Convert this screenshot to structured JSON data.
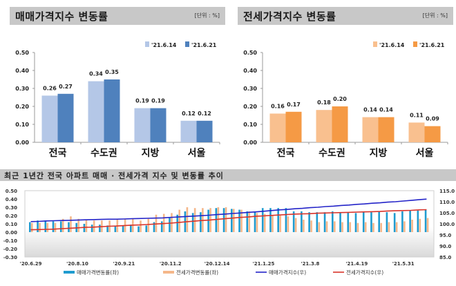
{
  "chart_data": [
    {
      "type": "bar",
      "title": "매매가격지수 변동률",
      "unit": "[단위 : %]",
      "categories": [
        "전국",
        "수도권",
        "지방",
        "서울"
      ],
      "series": [
        {
          "name": "'21.6.14",
          "values": [
            0.26,
            0.34,
            0.19,
            0.12
          ],
          "color": "#b4c7e7"
        },
        {
          "name": "'21.6.21",
          "values": [
            0.27,
            0.35,
            0.19,
            0.12
          ],
          "color": "#4f81bd"
        }
      ],
      "ylim": [
        0,
        0.5
      ],
      "yticks": [
        "0.00",
        "0.10",
        "0.20",
        "0.30",
        "0.40",
        "0.50"
      ],
      "legend": "top-right",
      "grid": false
    },
    {
      "type": "bar",
      "title": "전세가격지수 변동률",
      "unit": "[단위 : %]",
      "categories": [
        "전국",
        "수도권",
        "지방",
        "서울"
      ],
      "series": [
        {
          "name": "'21.6.14",
          "values": [
            0.16,
            0.18,
            0.14,
            0.11
          ],
          "color": "#f9c08f"
        },
        {
          "name": "'21.6.21",
          "values": [
            0.17,
            0.2,
            0.14,
            0.09
          ],
          "color": "#f59a45"
        }
      ],
      "ylim": [
        0,
        0.5
      ],
      "yticks": [
        "0.00",
        "0.10",
        "0.20",
        "0.30",
        "0.40",
        "0.50"
      ],
      "legend": "top-right",
      "grid": false
    },
    {
      "type": "bar+line",
      "title": "최근 1년간 전국 아파트 매매 · 전세가격 지수 및 변동률 추이",
      "x_tick_labels": [
        "'20.6.29",
        "'20.8.10",
        "'20.9.21",
        "'20.11.2",
        "'20.12.14",
        "'21.1.25",
        "'21.3.8",
        "'21.4.19",
        "'21.5.31"
      ],
      "left_yticks": [
        "0.50",
        "0.40",
        "0.30",
        "0.20",
        "0.10",
        "0.00",
        "-0.10",
        "-0.20",
        "-0.30"
      ],
      "left_ylim": [
        -0.3,
        0.5
      ],
      "right_yticks": [
        "115.0",
        "110.0",
        "105.0",
        "100.0",
        "95.0",
        "90.0",
        "85.0"
      ],
      "right_ylim": [
        85,
        115
      ],
      "series": [
        {
          "name": "매매가격변동률(좌)",
          "kind": "bar",
          "axis": "left",
          "color": "#1f9bcf",
          "values": [
            0.12,
            0.14,
            0.14,
            0.13,
            0.13,
            0.12,
            0.11,
            0.1,
            0.09,
            0.09,
            0.08,
            0.08,
            0.08,
            0.09,
            0.07,
            0.08,
            0.12,
            0.13,
            0.17,
            0.21,
            0.25,
            0.23,
            0.24,
            0.27,
            0.29,
            0.29,
            0.28,
            0.27,
            0.25,
            0.25,
            0.29,
            0.29,
            0.29,
            0.29,
            0.25,
            0.25,
            0.24,
            0.24,
            0.24,
            0.25,
            0.24,
            0.24,
            0.23,
            0.25,
            0.24,
            0.25,
            0.24,
            0.23,
            0.25,
            0.26,
            0.26,
            0.27
          ]
        },
        {
          "name": "전세가격변동률(좌)",
          "kind": "bar",
          "axis": "left",
          "color": "#f5b78a",
          "values": [
            0.11,
            0.11,
            0.11,
            0.11,
            0.16,
            0.19,
            0.16,
            0.15,
            0.14,
            0.14,
            0.14,
            0.15,
            0.16,
            0.16,
            0.14,
            0.16,
            0.21,
            0.22,
            0.23,
            0.27,
            0.3,
            0.29,
            0.29,
            0.29,
            0.3,
            0.3,
            0.28,
            0.27,
            0.25,
            0.23,
            0.22,
            0.2,
            0.2,
            0.19,
            0.17,
            0.15,
            0.14,
            0.12,
            0.13,
            0.13,
            0.12,
            0.12,
            0.11,
            0.12,
            0.11,
            0.11,
            0.12,
            0.12,
            0.13,
            0.15,
            0.16,
            0.17
          ]
        },
        {
          "name": "매매가격지수(우)",
          "kind": "line",
          "axis": "right",
          "color": "#2323c8",
          "values": [
            101.0,
            101.1,
            101.3,
            101.4,
            101.5,
            101.6,
            101.7,
            101.8,
            101.9,
            102.0,
            102.1,
            102.1,
            102.2,
            102.3,
            102.4,
            102.5,
            102.6,
            102.7,
            102.9,
            103.1,
            103.3,
            103.5,
            103.7,
            103.9,
            104.2,
            104.4,
            104.7,
            104.9,
            105.2,
            105.4,
            105.7,
            106.0,
            106.3,
            106.5,
            106.8,
            107.0,
            107.3,
            107.5,
            107.8,
            108.0,
            108.3,
            108.5,
            108.8,
            109.0,
            109.3,
            109.5,
            109.8,
            110.0,
            110.3,
            110.6,
            110.9,
            111.2
          ]
        },
        {
          "name": "전세가격지수(우)",
          "kind": "line",
          "axis": "right",
          "color": "#d8332a",
          "values": [
            97.3,
            97.4,
            97.5,
            97.6,
            97.8,
            98.0,
            98.2,
            98.4,
            98.5,
            98.7,
            98.9,
            99.0,
            99.2,
            99.4,
            99.5,
            99.7,
            99.9,
            100.1,
            100.3,
            100.6,
            100.9,
            101.2,
            101.5,
            101.7,
            102.0,
            102.3,
            102.6,
            102.9,
            103.1,
            103.4,
            103.6,
            103.8,
            104.0,
            104.2,
            104.4,
            104.5,
            104.6,
            104.8,
            104.9,
            105.0,
            105.1,
            105.2,
            105.3,
            105.4,
            105.5,
            105.6,
            105.8,
            105.9,
            106.0,
            106.1,
            106.3,
            106.4
          ]
        }
      ],
      "legend": "bottom"
    }
  ]
}
